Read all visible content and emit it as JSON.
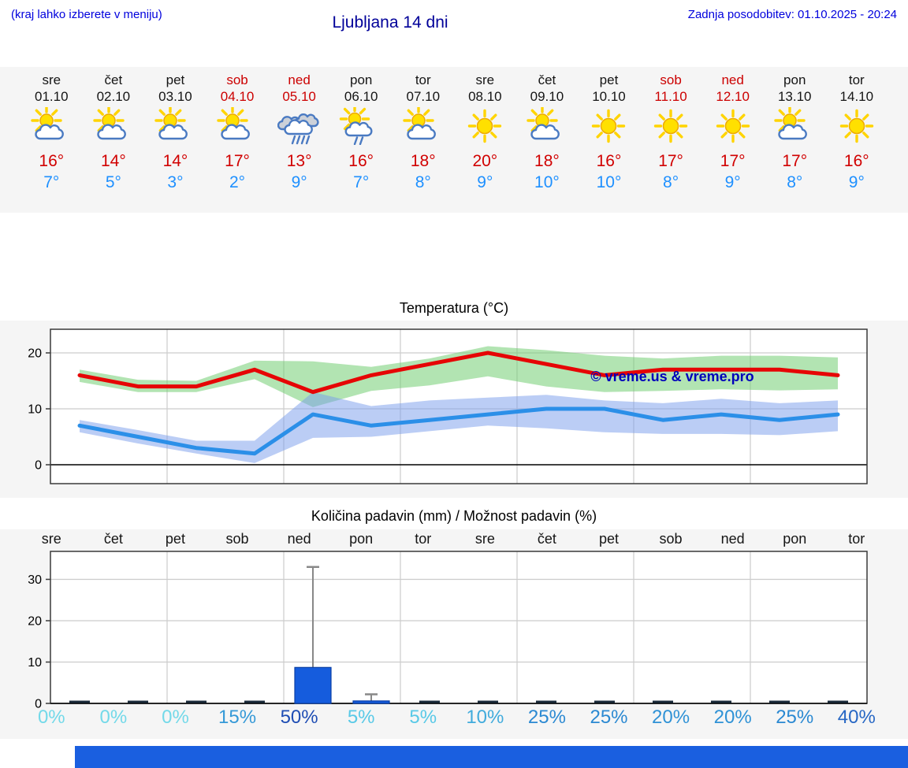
{
  "header": {
    "left_hint": "(kraj lahko izberete v meniju)",
    "title": "Ljubljana 14 dni",
    "updated": "Zadnja posodobitev: 01.10.2025 - 20:24"
  },
  "colors": {
    "link_blue": "#0000dd",
    "title_blue": "#000099",
    "high_red": "#d10000",
    "low_blue": "#1e90ff",
    "weekend_red": "#cc0000",
    "strip_bg": "#f5f5f5",
    "max_line": "#e60505",
    "min_line": "#2b8fe8",
    "bar_blue": "#155cdd",
    "bottom_bar": "#1a5fe0",
    "watermark_blue": "#0000bb"
  },
  "days": [
    {
      "name": "sre",
      "date": "01.10",
      "weekend": false,
      "icon": "sun-cloud",
      "high": "16°",
      "low": "7°"
    },
    {
      "name": "čet",
      "date": "02.10",
      "weekend": false,
      "icon": "sun-cloud",
      "high": "14°",
      "low": "5°"
    },
    {
      "name": "pet",
      "date": "03.10",
      "weekend": false,
      "icon": "sun-cloud",
      "high": "14°",
      "low": "3°"
    },
    {
      "name": "sob",
      "date": "04.10",
      "weekend": true,
      "icon": "sun-cloud",
      "high": "17°",
      "low": "2°"
    },
    {
      "name": "ned",
      "date": "05.10",
      "weekend": true,
      "icon": "cloud-rain",
      "high": "13°",
      "low": "9°"
    },
    {
      "name": "pon",
      "date": "06.10",
      "weekend": false,
      "icon": "sun-cloud-rain",
      "high": "16°",
      "low": "7°"
    },
    {
      "name": "tor",
      "date": "07.10",
      "weekend": false,
      "icon": "sun-cloud",
      "high": "18°",
      "low": "8°"
    },
    {
      "name": "sre",
      "date": "08.10",
      "weekend": false,
      "icon": "sun",
      "high": "20°",
      "low": "9°"
    },
    {
      "name": "čet",
      "date": "09.10",
      "weekend": false,
      "icon": "sun-cloud",
      "high": "18°",
      "low": "10°"
    },
    {
      "name": "pet",
      "date": "10.10",
      "weekend": false,
      "icon": "sun",
      "high": "16°",
      "low": "10°"
    },
    {
      "name": "sob",
      "date": "11.10",
      "weekend": true,
      "icon": "sun",
      "high": "17°",
      "low": "8°"
    },
    {
      "name": "ned",
      "date": "12.10",
      "weekend": true,
      "icon": "sun",
      "high": "17°",
      "low": "9°"
    },
    {
      "name": "pon",
      "date": "13.10",
      "weekend": false,
      "icon": "sun-cloud",
      "high": "17°",
      "low": "8°"
    },
    {
      "name": "tor",
      "date": "14.10",
      "weekend": false,
      "icon": "sun",
      "high": "16°",
      "low": "9°"
    }
  ],
  "chart_data": [
    {
      "type": "line",
      "title": "Temperatura (°C)",
      "categories": [
        "01.10",
        "02.10",
        "03.10",
        "04.10",
        "05.10",
        "06.10",
        "07.10",
        "08.10",
        "09.10",
        "10.10",
        "11.10",
        "12.10",
        "13.10",
        "14.10"
      ],
      "yticks": [
        0,
        10,
        20
      ],
      "ylim": [
        -3.4,
        24.2
      ],
      "grid": true,
      "watermark": "© vreme.us & vreme.pro",
      "series": [
        {
          "name": "max-temp",
          "color": "#e60505",
          "values": [
            16,
            14,
            14,
            17,
            13,
            16,
            18,
            20,
            18,
            16,
            17,
            17,
            17,
            16
          ],
          "band_upper": [
            17,
            15.2,
            15,
            18.6,
            18.5,
            17.5,
            19,
            21.2,
            20.5,
            19.5,
            19,
            19.5,
            19.5,
            19.2
          ],
          "band_lower": [
            14.8,
            13,
            13,
            15.3,
            10.3,
            13.2,
            14.2,
            15.8,
            14,
            13,
            13.2,
            13.5,
            13.3,
            13.5
          ],
          "band_color": "rgba(115,205,115,0.55)"
        },
        {
          "name": "min-temp",
          "color": "#2b8fe8",
          "values": [
            7,
            5,
            3,
            2,
            9,
            7,
            8,
            9,
            10,
            10,
            8,
            9,
            8,
            9
          ],
          "band_upper": [
            8,
            6.2,
            4.3,
            4.3,
            13,
            10.5,
            11.5,
            12,
            12.5,
            11.5,
            11,
            11.8,
            11,
            11.5
          ],
          "band_lower": [
            5.8,
            3.8,
            2,
            0.3,
            4.8,
            5,
            6,
            7,
            6.5,
            5.8,
            5.5,
            5.5,
            5.3,
            6
          ],
          "band_color": "rgba(120,155,235,0.5)"
        }
      ]
    },
    {
      "type": "bar",
      "title": "Količina padavin (mm) / Možnost padavin (%)",
      "categories": [
        "sre",
        "čet",
        "pet",
        "sob",
        "ned",
        "pon",
        "tor",
        "sre",
        "čet",
        "pet",
        "sob",
        "ned",
        "pon",
        "tor"
      ],
      "values": [
        0,
        0,
        0,
        0,
        8.7,
        0.6,
        0,
        0,
        0,
        0,
        0,
        0,
        0,
        0
      ],
      "whisker_max": [
        null,
        null,
        null,
        null,
        33,
        2.2,
        null,
        null,
        null,
        null,
        null,
        null,
        null,
        null
      ],
      "probabilities": [
        "0%",
        "0%",
        "0%",
        "15%",
        "50%",
        "5%",
        "5%",
        "10%",
        "25%",
        "25%",
        "20%",
        "20%",
        "25%",
        "40%"
      ],
      "probability_colors": [
        "#73d9e9",
        "#73d9e9",
        "#73d9e9",
        "#3599d7",
        "#1e4db4",
        "#58c9e7",
        "#58c9e7",
        "#41abdc",
        "#2b89d2",
        "#2b89d2",
        "#2f92d6",
        "#2f92d6",
        "#2b89d2",
        "#2767c4"
      ],
      "yticks": [
        0,
        10,
        20,
        30
      ],
      "ylim": [
        0,
        36.8
      ],
      "grid": true,
      "bar_color": "#155cdd"
    }
  ]
}
